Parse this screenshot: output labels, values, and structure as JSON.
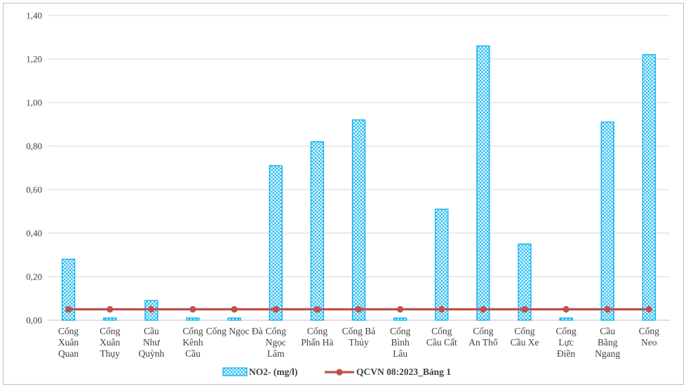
{
  "chart_data": {
    "type": "bar",
    "categories": [
      [
        "Cống",
        "Xuân",
        "Quan"
      ],
      [
        "Cống",
        "Xuân",
        "Thụy"
      ],
      [
        "Cầu",
        "Như",
        "Quỳnh"
      ],
      [
        "Cống",
        "Kênh",
        "Cầu"
      ],
      [
        "Cống Ngọc Đà"
      ],
      [
        "Cống",
        "Ngọc",
        "Lâm"
      ],
      [
        "Cống",
        "Phấn Hà"
      ],
      [
        "Cống Bá",
        "Thủy"
      ],
      [
        "Cống",
        "Bình",
        "Lâu"
      ],
      [
        "Cống",
        "Cầu Cất"
      ],
      [
        "Cống",
        "An Thổ"
      ],
      [
        "Cống",
        "Cầu Xe"
      ],
      [
        "Cống",
        "Lực",
        "Điền"
      ],
      [
        "Cầu",
        "Bằng",
        "Ngang"
      ],
      [
        "Cống",
        "Neo"
      ]
    ],
    "series": [
      {
        "name": "NO2- (mg/l)",
        "kind": "bar",
        "color": "#00b0f0",
        "values": [
          0.28,
          0.01,
          0.09,
          0.01,
          0.01,
          0.71,
          0.82,
          0.92,
          0.01,
          0.51,
          1.26,
          0.35,
          0.01,
          0.91,
          1.22
        ]
      },
      {
        "name": "QCVN 08:2023_Bảng 1",
        "kind": "line",
        "color": "#c0504d",
        "values": [
          0.05,
          0.05,
          0.05,
          0.05,
          0.05,
          0.05,
          0.05,
          0.05,
          0.05,
          0.05,
          0.05,
          0.05,
          0.05,
          0.05,
          0.05
        ]
      }
    ],
    "ylim": [
      0,
      1.4
    ],
    "yticks": [
      "0,00",
      "0,20",
      "0,40",
      "0,60",
      "0,80",
      "1,00",
      "1,20",
      "1,40"
    ],
    "ytick_values": [
      0,
      0.2,
      0.4,
      0.6,
      0.8,
      1.0,
      1.2,
      1.4
    ],
    "grid": true,
    "legend_position": "bottom",
    "title": "",
    "xlabel": "",
    "ylabel": ""
  }
}
